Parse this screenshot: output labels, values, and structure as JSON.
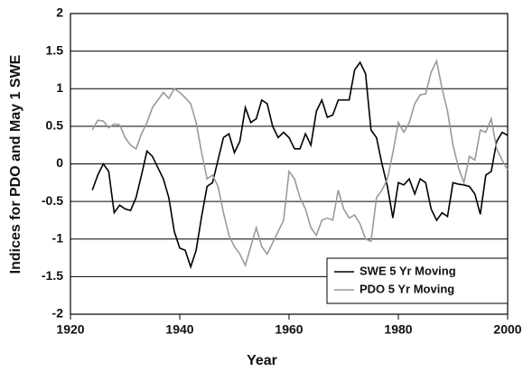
{
  "chart_data": {
    "type": "line",
    "x_label": "Year",
    "y_label": "Indices for PDO and May 1 SWE",
    "x": [
      1924,
      1925,
      1926,
      1927,
      1928,
      1929,
      1930,
      1931,
      1932,
      1933,
      1934,
      1935,
      1936,
      1937,
      1938,
      1939,
      1940,
      1941,
      1942,
      1943,
      1944,
      1945,
      1946,
      1947,
      1948,
      1949,
      1950,
      1951,
      1952,
      1953,
      1954,
      1955,
      1956,
      1957,
      1958,
      1959,
      1960,
      1961,
      1962,
      1963,
      1964,
      1965,
      1966,
      1967,
      1968,
      1969,
      1970,
      1971,
      1972,
      1973,
      1974,
      1975,
      1976,
      1977,
      1978,
      1979,
      1980,
      1981,
      1982,
      1983,
      1984,
      1985,
      1986,
      1987,
      1988,
      1989,
      1990,
      1991,
      1992,
      1993,
      1994,
      1995,
      1996,
      1997,
      1998,
      1999,
      2000
    ],
    "series": [
      {
        "name": "SWE 5 Yr Moving",
        "color": "#000000",
        "values": [
          -0.35,
          -0.15,
          0.0,
          -0.1,
          -0.65,
          -0.55,
          -0.6,
          -0.62,
          -0.45,
          -0.15,
          0.17,
          0.1,
          -0.05,
          -0.2,
          -0.45,
          -0.9,
          -1.12,
          -1.15,
          -1.37,
          -1.15,
          -0.7,
          -0.3,
          -0.25,
          0.05,
          0.35,
          0.4,
          0.15,
          0.3,
          0.75,
          0.55,
          0.6,
          0.85,
          0.8,
          0.5,
          0.35,
          0.42,
          0.35,
          0.2,
          0.2,
          0.4,
          0.25,
          0.7,
          0.85,
          0.62,
          0.65,
          0.85,
          0.85,
          0.85,
          1.25,
          1.35,
          1.2,
          0.45,
          0.35,
          0.0,
          -0.3,
          -0.72,
          -0.25,
          -0.28,
          -0.2,
          -0.4,
          -0.2,
          -0.25,
          -0.6,
          -0.75,
          -0.65,
          -0.7,
          -0.25,
          -0.27,
          -0.28,
          -0.3,
          -0.4,
          -0.67,
          -0.15,
          -0.1,
          0.3,
          0.42,
          0.38
        ]
      },
      {
        "name": "PDO 5 Yr Moving",
        "color": "#9a9a9a",
        "values": [
          0.45,
          0.58,
          0.57,
          0.48,
          0.53,
          0.52,
          0.35,
          0.25,
          0.2,
          0.4,
          0.55,
          0.75,
          0.85,
          0.95,
          0.87,
          1.0,
          0.95,
          0.88,
          0.8,
          0.55,
          0.15,
          -0.2,
          -0.15,
          -0.3,
          -0.65,
          -0.95,
          -1.1,
          -1.2,
          -1.35,
          -1.1,
          -0.85,
          -1.1,
          -1.2,
          -1.05,
          -0.9,
          -0.75,
          -0.1,
          -0.2,
          -0.45,
          -0.6,
          -0.85,
          -0.95,
          -0.75,
          -0.72,
          -0.75,
          -0.35,
          -0.6,
          -0.72,
          -0.68,
          -0.8,
          -1.0,
          -1.03,
          -0.45,
          -0.35,
          -0.2,
          0.15,
          0.55,
          0.42,
          0.55,
          0.8,
          0.92,
          0.93,
          1.22,
          1.37,
          1.0,
          0.7,
          0.25,
          -0.05,
          -0.25,
          0.1,
          0.05,
          0.45,
          0.42,
          0.6,
          0.2,
          0.05,
          -0.08
        ]
      }
    ],
    "xlim": [
      1920,
      2000
    ],
    "xticks": [
      1920,
      1940,
      1960,
      1980,
      2000
    ],
    "ylim": [
      -2,
      2
    ],
    "yticks": [
      2,
      1.5,
      1,
      0.5,
      0,
      -0.5,
      -1,
      -1.5,
      -2
    ],
    "grid": true,
    "legend": "lower right"
  }
}
